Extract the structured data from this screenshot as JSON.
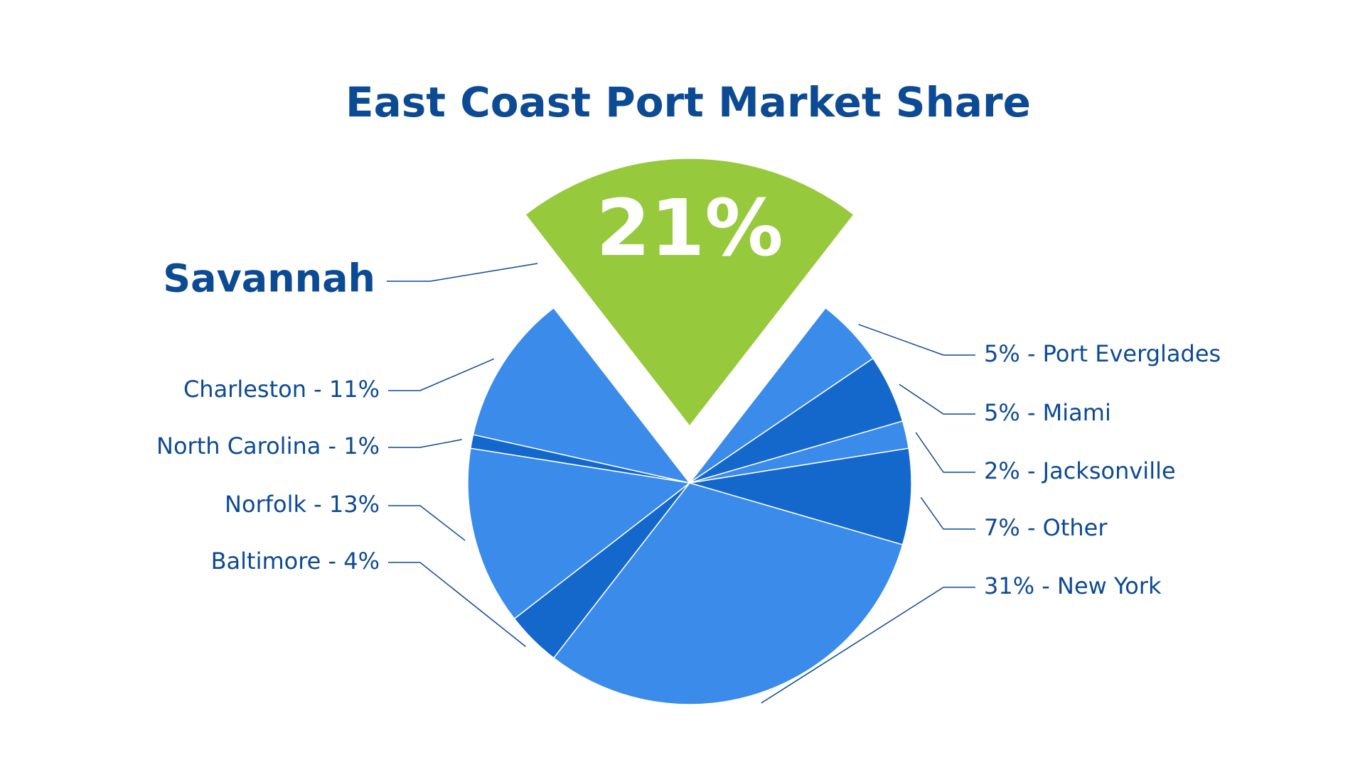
{
  "chart_data": {
    "type": "pie",
    "title": "East Coast Port Market Share",
    "categories": [
      "Savannah",
      "Port Everglades",
      "Miami",
      "Jacksonville",
      "Other",
      "New York",
      "Baltimore",
      "Norfolk",
      "North Carolina",
      "Charleston"
    ],
    "values": [
      21,
      5,
      5,
      2,
      7,
      31,
      4,
      13,
      1,
      11
    ],
    "value_labels": [
      "21%",
      "5%",
      "5%",
      "2%",
      "7%",
      "31%",
      "4%",
      "13%",
      "1%",
      "11%"
    ],
    "separator": " - ",
    "colors": [
      "#97c93d",
      "#3a8bea",
      "#1468cc",
      "#3a8bea",
      "#1468cc",
      "#3a8bea",
      "#1468cc",
      "#3a8bea",
      "#1468cc",
      "#3a8bea"
    ],
    "highlight": 0
  }
}
